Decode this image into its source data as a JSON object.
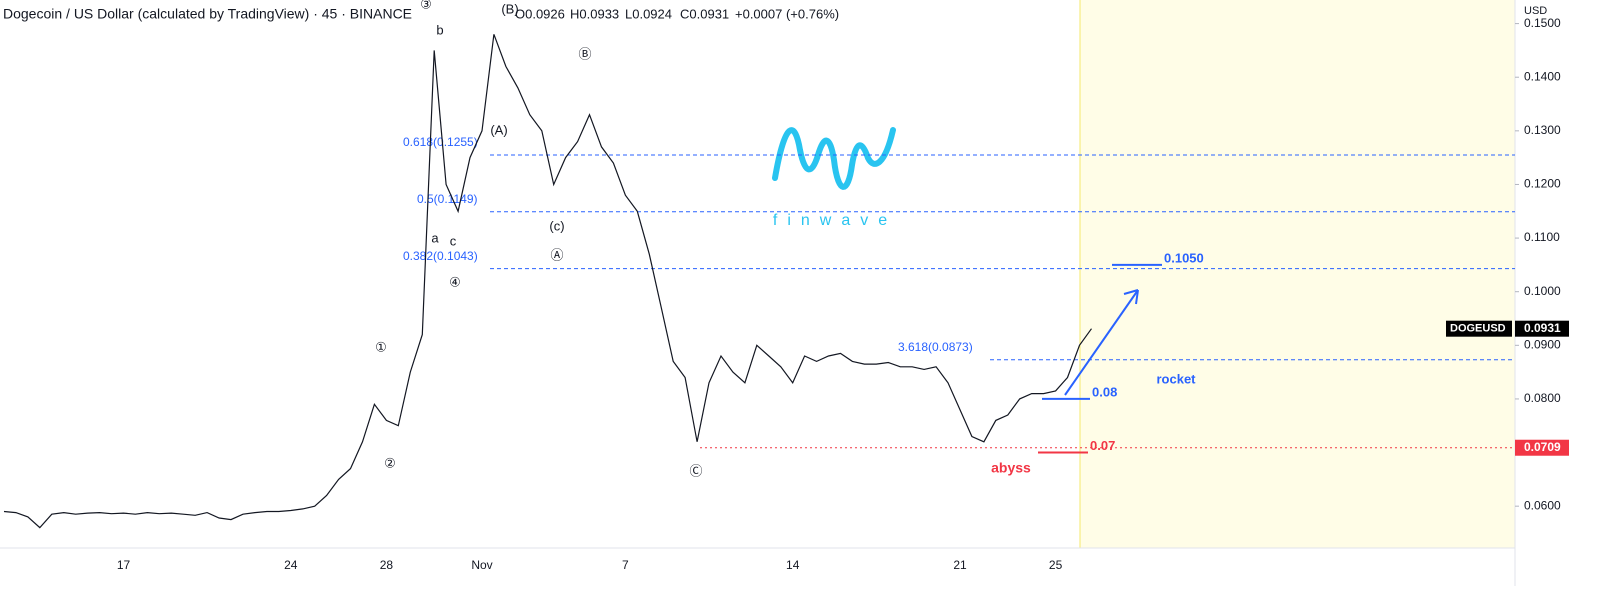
{
  "chart_data": {
    "type": "line",
    "title": "Dogecoin / US Dollar (calculated by TradingView) · 45 · BINANCE",
    "ohlc": [
      "O0.0926",
      "H0.0933",
      "L0.0924",
      "C0.0931",
      "+0.0007 (+0.76%)"
    ],
    "currency": "USD",
    "categories": [
      null,
      null,
      null,
      null,
      null,
      null,
      null,
      null,
      null,
      null,
      "17",
      null,
      null,
      null,
      null,
      null,
      null,
      null,
      null,
      null,
      null,
      null,
      null,
      null,
      "24",
      null,
      null,
      null,
      null,
      null,
      null,
      null,
      "28",
      null,
      null,
      null,
      null,
      null,
      null,
      null,
      "Nov",
      null,
      null,
      null,
      null,
      null,
      null,
      null,
      null,
      null,
      null,
      null,
      "7",
      null,
      null,
      null,
      null,
      null,
      null,
      null,
      null,
      null,
      null,
      null,
      null,
      null,
      "14",
      null,
      null,
      null,
      null,
      null,
      null,
      null,
      null,
      null,
      null,
      null,
      null,
      null,
      "21",
      null,
      null,
      null,
      null,
      null,
      null,
      null,
      "25",
      null,
      null,
      null
    ],
    "series": [
      {
        "name": "DOGEUSD",
        "color": "#131722",
        "values": [
          0.059,
          0.0588,
          0.058,
          0.056,
          0.0585,
          0.0588,
          0.0585,
          0.0587,
          0.0588,
          0.0586,
          0.0587,
          0.0585,
          0.0588,
          0.0586,
          0.0587,
          0.0585,
          0.0583,
          0.0588,
          0.0578,
          0.0575,
          0.0585,
          0.0588,
          0.059,
          0.059,
          0.0592,
          0.0595,
          0.06,
          0.062,
          0.065,
          0.067,
          0.072,
          0.079,
          0.076,
          0.075,
          0.085,
          0.092,
          0.145,
          0.12,
          0.115,
          0.125,
          0.13,
          0.148,
          0.142,
          0.138,
          0.133,
          0.13,
          0.12,
          0.125,
          0.128,
          0.133,
          0.127,
          0.124,
          0.118,
          0.115,
          0.107,
          0.097,
          0.087,
          0.084,
          0.072,
          0.083,
          0.088,
          0.085,
          0.083,
          0.09,
          0.088,
          0.086,
          0.083,
          0.088,
          0.087,
          0.088,
          0.0885,
          0.087,
          0.0865,
          0.0865,
          0.0868,
          0.086,
          0.086,
          0.0855,
          0.086,
          0.083,
          0.078,
          0.073,
          0.072,
          0.076,
          0.077,
          0.08,
          0.081,
          0.081,
          0.0815,
          0.084,
          0.09,
          0.0931
        ]
      }
    ],
    "ylim": [
      0.0522,
      0.1544
    ],
    "yticks": [
      {
        "value": 0.06,
        "label": "0.0600"
      },
      {
        "value": 0.07,
        "label": "0.0700"
      },
      {
        "value": 0.08,
        "label": "0.0800"
      },
      {
        "value": 0.09,
        "label": "0.0900"
      },
      {
        "value": 0.1,
        "label": "0.1000"
      },
      {
        "value": 0.11,
        "label": "0.1100"
      },
      {
        "value": 0.12,
        "label": "0.1200"
      },
      {
        "value": 0.13,
        "label": "0.1300"
      },
      {
        "value": 0.14,
        "label": "0.1400"
      },
      {
        "value": 0.15,
        "label": "0.1500"
      }
    ],
    "fib_levels": [
      {
        "label": "0.618(0.1255)",
        "value": 0.1255
      },
      {
        "label": "0.5(0.1149)",
        "value": 0.1149
      },
      {
        "label": "0.382(0.1043)",
        "value": 0.1043
      },
      {
        "label": "3.618(0.0873)",
        "value": 0.0873
      }
    ],
    "support_level": 0.0709,
    "targets": [
      {
        "label": "0.1050",
        "value": 0.105,
        "color": "#2962ff"
      },
      {
        "label": "0.08",
        "value": 0.08,
        "color": "#2962ff"
      },
      {
        "label": "0.07",
        "value": 0.07,
        "color": "#f23645"
      }
    ],
    "price_labels": [
      {
        "name": "DOGEUSD",
        "value": 0.0931,
        "label": "0.0931",
        "color": "#000000"
      },
      {
        "value": 0.0709,
        "label": "0.0709",
        "color": "#f23645"
      }
    ],
    "annotations": [
      "①",
      "②",
      "③",
      "④",
      "a",
      "b",
      "c",
      "(A)",
      "(B)",
      "(c)",
      "Ⓐ",
      "Ⓑ",
      "Ⓒ",
      "rocket",
      "abyss"
    ],
    "logo": "finwave"
  }
}
